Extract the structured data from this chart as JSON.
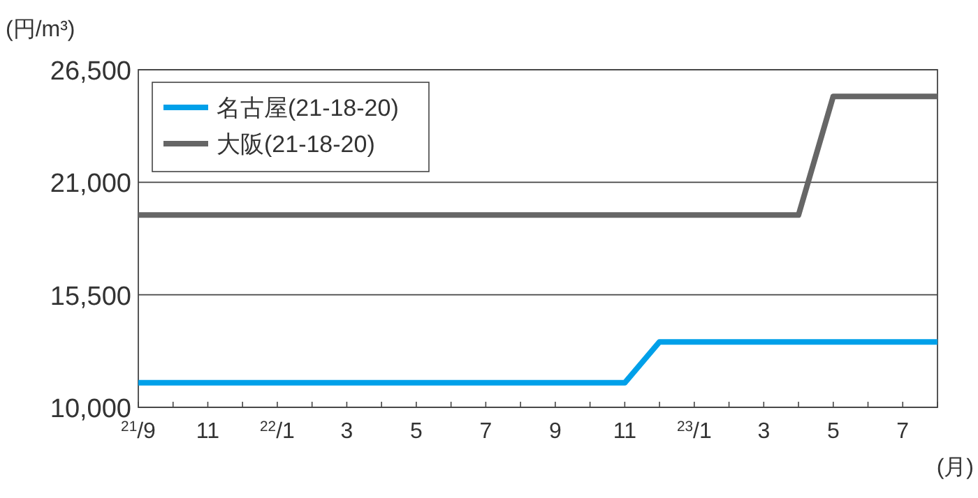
{
  "chart_data": {
    "type": "line",
    "xlabel": "(月)",
    "ylabel": "(円/m³)",
    "categories": [
      "$^{21}$/9",
      null,
      "11",
      null,
      "$^{22}$/1",
      null,
      "3",
      null,
      "5",
      null,
      "7",
      null,
      "9",
      null,
      "11",
      null,
      "$^{23}$/1",
      null,
      "3",
      null,
      "5",
      null,
      "7",
      null
    ],
    "ylim": [
      10000,
      26500
    ],
    "yticks": [
      {
        "value": 10000,
        "label": "10,000"
      },
      {
        "value": 15500,
        "label": "15,500"
      },
      {
        "value": 21000,
        "label": "21,000"
      },
      {
        "value": 26500,
        "label": "26,500"
      }
    ],
    "grid": "y",
    "legend": "top left",
    "marker": "none",
    "line_style": "solid",
    "series": [
      {
        "name": "名古屋(21-18-20)",
        "color": "#00a0e9",
        "values": [
          11200,
          11200,
          11200,
          11200,
          11200,
          11200,
          11200,
          11200,
          11200,
          11200,
          11200,
          11200,
          11200,
          11200,
          11200,
          13200,
          13200,
          13200,
          13200,
          13200,
          13200,
          13200,
          13200,
          13200
        ]
      },
      {
        "name": "大阪(21-18-20)",
        "color": "#666666",
        "values": [
          19400,
          19400,
          19400,
          19400,
          19400,
          19400,
          19400,
          19400,
          19400,
          19400,
          19400,
          19400,
          19400,
          19400,
          19400,
          19400,
          19400,
          19400,
          19400,
          19400,
          25200,
          25200,
          25200,
          25200
        ]
      }
    ]
  }
}
